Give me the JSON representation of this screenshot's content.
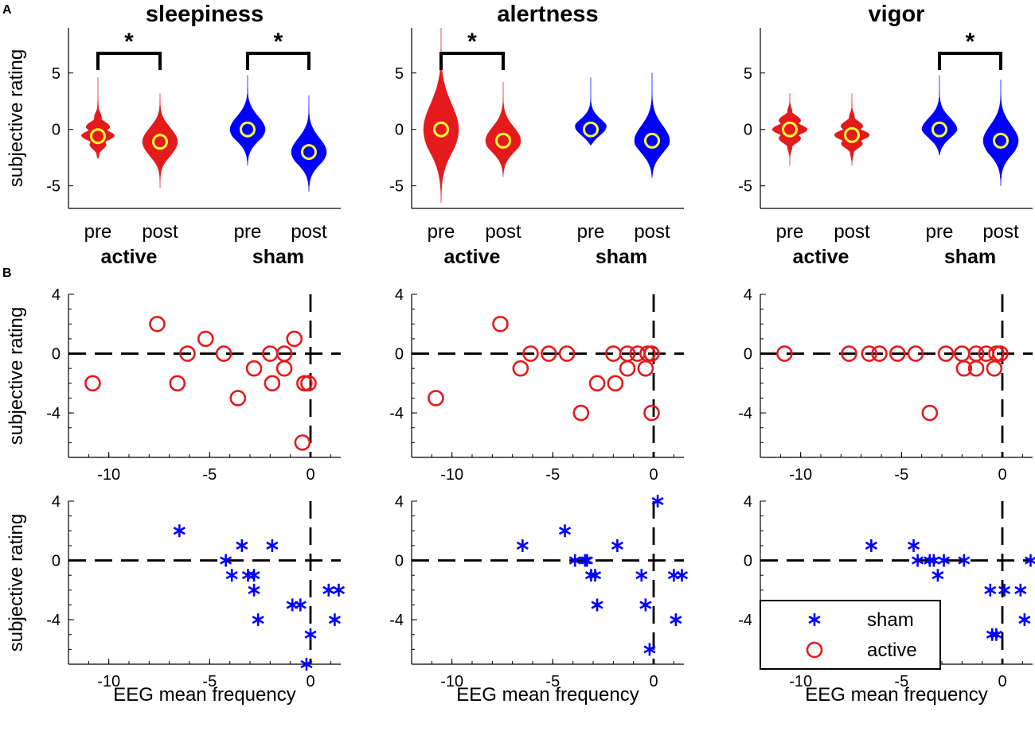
{
  "figure": {
    "panel_a_label": "A",
    "panel_b_label": "B",
    "x_axis_label": "EEG mean frequency",
    "y_axis_label": "subjective rating"
  },
  "chart_data": [
    {
      "type": "violin",
      "title": "sleepiness",
      "ylabel": "subjective rating",
      "ylim": [
        -7,
        9
      ],
      "yticks": [
        -5,
        0,
        5
      ],
      "groups": [
        {
          "name": "active",
          "conditions": [
            {
              "label": "pre",
              "color": "#e41a1c",
              "mean": -0.6,
              "range": [
                -2.6,
                4.6
              ]
            },
            {
              "label": "post",
              "color": "#e41a1c",
              "mean": -1.1,
              "range": [
                -5.2,
                3.2
              ]
            }
          ]
        },
        {
          "name": "sham",
          "conditions": [
            {
              "label": "pre",
              "color": "#0000ff",
              "mean": 0.0,
              "range": [
                -3.2,
                4.8
              ]
            },
            {
              "label": "post",
              "color": "#0000ff",
              "mean": -2.0,
              "range": [
                -5.5,
                3.0
              ]
            }
          ]
        }
      ],
      "significance": [
        {
          "between": [
            "active pre",
            "active post"
          ],
          "label": "*"
        },
        {
          "between": [
            "sham pre",
            "sham post"
          ],
          "label": "*"
        }
      ]
    },
    {
      "type": "violin",
      "title": "alertness",
      "ylabel": "",
      "ylim": [
        -7,
        9
      ],
      "yticks": [
        -5,
        0,
        5
      ],
      "groups": [
        {
          "name": "active",
          "conditions": [
            {
              "label": "pre",
              "color": "#e41a1c",
              "mean": 0.0,
              "range": [
                -6.5,
                9.0
              ]
            },
            {
              "label": "post",
              "color": "#e41a1c",
              "mean": -1.0,
              "range": [
                -4.2,
                4.2
              ]
            }
          ]
        },
        {
          "name": "sham",
          "conditions": [
            {
              "label": "pre",
              "color": "#0000ff",
              "mean": 0.0,
              "range": [
                -1.4,
                4.6
              ]
            },
            {
              "label": "post",
              "color": "#0000ff",
              "mean": -1.0,
              "range": [
                -4.3,
                5.0
              ]
            }
          ]
        }
      ],
      "significance": [
        {
          "between": [
            "active pre",
            "active post"
          ],
          "label": "*"
        }
      ]
    },
    {
      "type": "violin",
      "title": "vigor",
      "ylabel": "",
      "ylim": [
        -7,
        9
      ],
      "yticks": [
        -5,
        0,
        5
      ],
      "groups": [
        {
          "name": "active",
          "conditions": [
            {
              "label": "pre",
              "color": "#e41a1c",
              "mean": 0.0,
              "range": [
                -3.2,
                3.2
              ]
            },
            {
              "label": "post",
              "color": "#e41a1c",
              "mean": -0.5,
              "range": [
                -3.2,
                3.2
              ]
            }
          ]
        },
        {
          "name": "sham",
          "conditions": [
            {
              "label": "pre",
              "color": "#0000ff",
              "mean": 0.0,
              "range": [
                -2.3,
                4.8
              ]
            },
            {
              "label": "post",
              "color": "#0000ff",
              "mean": -1.0,
              "range": [
                -5.0,
                4.4
              ]
            }
          ]
        }
      ],
      "significance": [
        {
          "between": [
            "sham pre",
            "sham post"
          ],
          "label": "*"
        }
      ]
    },
    {
      "type": "scatter",
      "panel": "sleepiness active",
      "xlabel": "",
      "ylabel": "subjective rating",
      "xlim": [
        -12,
        1.5
      ],
      "ylim": [
        -7,
        4
      ],
      "xticks": [
        -10,
        -5,
        0
      ],
      "yticks": [
        -4,
        0,
        4
      ],
      "series": [
        {
          "name": "active",
          "marker": "circle",
          "color": "#e41a1c",
          "points": [
            [
              -10.8,
              -2
            ],
            [
              -7.6,
              2
            ],
            [
              -6.6,
              -2
            ],
            [
              -6.1,
              0
            ],
            [
              -5.2,
              1
            ],
            [
              -4.3,
              0
            ],
            [
              -3.6,
              -3
            ],
            [
              -2.8,
              -1
            ],
            [
              -2,
              0
            ],
            [
              -1.9,
              -2
            ],
            [
              -1.3,
              0
            ],
            [
              -1.3,
              -1
            ],
            [
              -0.8,
              1
            ],
            [
              -0.3,
              -2
            ],
            [
              -0.1,
              -2
            ],
            [
              -0.4,
              -6
            ]
          ]
        }
      ],
      "reference_lines": {
        "x": 0,
        "y": 0
      }
    },
    {
      "type": "scatter",
      "panel": "alertness active",
      "xlabel": "",
      "ylabel": "",
      "xlim": [
        -12,
        1.5
      ],
      "ylim": [
        -7,
        4
      ],
      "xticks": [
        -10,
        -5,
        0
      ],
      "yticks": [
        -4,
        0,
        4
      ],
      "series": [
        {
          "name": "active",
          "marker": "circle",
          "color": "#e41a1c",
          "points": [
            [
              -10.8,
              -3
            ],
            [
              -7.6,
              2
            ],
            [
              -6.6,
              -1
            ],
            [
              -6.1,
              0
            ],
            [
              -5.2,
              0
            ],
            [
              -4.3,
              0
            ],
            [
              -3.6,
              -4
            ],
            [
              -2.8,
              -2
            ],
            [
              -2,
              0
            ],
            [
              -1.9,
              -2
            ],
            [
              -1.3,
              0
            ],
            [
              -1.3,
              -1
            ],
            [
              -0.8,
              0
            ],
            [
              -0.3,
              0
            ],
            [
              -0.1,
              0
            ],
            [
              -0.4,
              -1
            ],
            [
              -0.1,
              -4
            ]
          ]
        }
      ],
      "reference_lines": {
        "x": 0,
        "y": 0
      }
    },
    {
      "type": "scatter",
      "panel": "vigor active",
      "xlabel": "",
      "ylabel": "",
      "xlim": [
        -12,
        1.5
      ],
      "ylim": [
        -7,
        4
      ],
      "xticks": [
        -10,
        -5,
        0
      ],
      "yticks": [
        -4,
        0,
        4
      ],
      "series": [
        {
          "name": "active",
          "marker": "circle",
          "color": "#e41a1c",
          "points": [
            [
              -10.8,
              0
            ],
            [
              -7.6,
              0
            ],
            [
              -6.6,
              0
            ],
            [
              -6.1,
              0
            ],
            [
              -5.2,
              0
            ],
            [
              -4.3,
              0
            ],
            [
              -3.6,
              -4
            ],
            [
              -2.8,
              0
            ],
            [
              -2,
              0
            ],
            [
              -1.9,
              -1
            ],
            [
              -1.3,
              0
            ],
            [
              -1.3,
              -1
            ],
            [
              -0.8,
              0
            ],
            [
              -0.3,
              0
            ],
            [
              -0.1,
              0
            ],
            [
              -0.4,
              -1
            ]
          ]
        }
      ],
      "reference_lines": {
        "x": 0,
        "y": 0
      }
    },
    {
      "type": "scatter",
      "panel": "sleepiness sham",
      "xlabel": "EEG mean frequency",
      "ylabel": "subjective rating",
      "xlim": [
        -12,
        1.5
      ],
      "ylim": [
        -7,
        4
      ],
      "xticks": [
        -10,
        -5,
        0
      ],
      "yticks": [
        -4,
        0,
        4
      ],
      "series": [
        {
          "name": "sham",
          "marker": "asterisk",
          "color": "#0000ff",
          "points": [
            [
              -6.5,
              2
            ],
            [
              -4.2,
              0
            ],
            [
              -3.9,
              -1
            ],
            [
              -3.4,
              1
            ],
            [
              -3.1,
              -1
            ],
            [
              -2.8,
              -1
            ],
            [
              -2.8,
              -2
            ],
            [
              -2.6,
              -4
            ],
            [
              -1.9,
              1
            ],
            [
              -0.9,
              -3
            ],
            [
              -0.5,
              -3
            ],
            [
              -0.2,
              -7
            ],
            [
              0,
              -5
            ],
            [
              1.2,
              -4
            ],
            [
              0.9,
              -2
            ],
            [
              1.4,
              -2
            ]
          ]
        }
      ],
      "reference_lines": {
        "x": 0,
        "y": 0
      }
    },
    {
      "type": "scatter",
      "panel": "alertness sham",
      "xlabel": "EEG mean frequency",
      "ylabel": "",
      "xlim": [
        -12,
        1.5
      ],
      "ylim": [
        -7,
        4
      ],
      "xticks": [
        -10,
        -5,
        0
      ],
      "yticks": [
        -4,
        0,
        4
      ],
      "series": [
        {
          "name": "sham",
          "marker": "asterisk",
          "color": "#0000ff",
          "points": [
            [
              -6.5,
              1
            ],
            [
              -4.4,
              2
            ],
            [
              -3.9,
              0
            ],
            [
              -3.4,
              0
            ],
            [
              -3.3,
              0
            ],
            [
              -3.1,
              -1
            ],
            [
              -2.9,
              -1
            ],
            [
              -2.8,
              -3
            ],
            [
              -1.8,
              1
            ],
            [
              -0.6,
              -1
            ],
            [
              -0.4,
              -3
            ],
            [
              -0.2,
              -6
            ],
            [
              0.2,
              4
            ],
            [
              1,
              -1
            ],
            [
              1.4,
              -1
            ],
            [
              1.1,
              -4
            ]
          ]
        }
      ],
      "reference_lines": {
        "x": 0,
        "y": 0
      }
    },
    {
      "type": "scatter",
      "panel": "vigor sham",
      "xlabel": "EEG mean frequency",
      "ylabel": "",
      "xlim": [
        -12,
        1.5
      ],
      "ylim": [
        -7,
        4
      ],
      "xticks": [
        -10,
        -5,
        0
      ],
      "yticks": [
        -4,
        0,
        4
      ],
      "series": [
        {
          "name": "sham",
          "marker": "asterisk",
          "color": "#0000ff",
          "points": [
            [
              -6.5,
              1
            ],
            [
              -4.4,
              1
            ],
            [
              -4.2,
              0
            ],
            [
              -3.6,
              0
            ],
            [
              -3.4,
              0
            ],
            [
              -3.2,
              -1
            ],
            [
              -2.9,
              0
            ],
            [
              -1.9,
              0
            ],
            [
              -0.5,
              -5
            ],
            [
              -0.3,
              -5
            ],
            [
              -0.6,
              -2
            ],
            [
              0.1,
              -2
            ],
            [
              0.9,
              -2
            ],
            [
              1.4,
              0
            ],
            [
              1.1,
              -4
            ]
          ]
        }
      ],
      "reference_lines": {
        "x": 0,
        "y": 0
      },
      "legend": {
        "location": "bottom-left",
        "entries": [
          {
            "label": "sham",
            "marker": "asterisk",
            "color": "#0000ff"
          },
          {
            "label": "active",
            "marker": "circle",
            "color": "#e41a1c"
          }
        ]
      }
    }
  ]
}
